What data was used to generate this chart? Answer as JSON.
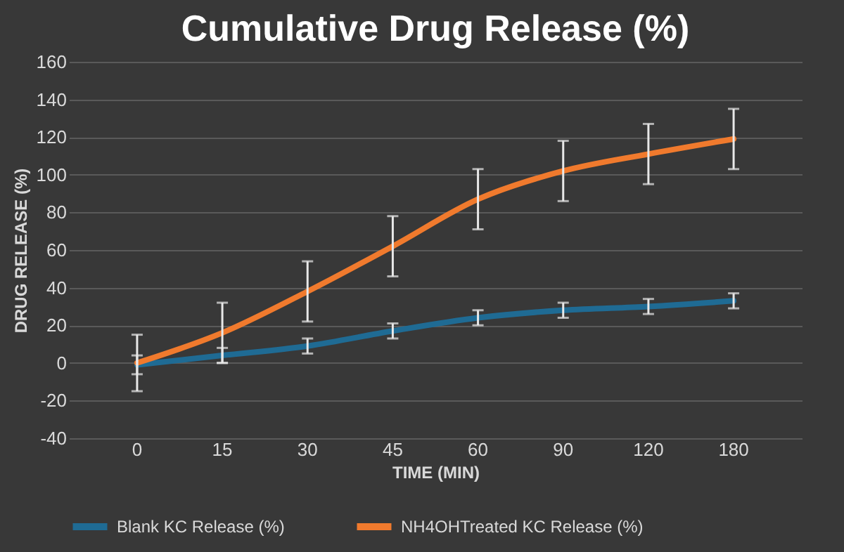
{
  "chart_data": {
    "type": "line",
    "title": "Cumulative Drug Release (%)",
    "xlabel": "TIME (MIN)",
    "ylabel": "DRUG RELEASE (%)",
    "categories": [
      "0",
      "15",
      "30",
      "45",
      "60",
      "90",
      "120",
      "180"
    ],
    "series": [
      {
        "name": "Blank KC Release (%)",
        "color": "#1f6b94",
        "values": [
          -1,
          4,
          9,
          17,
          24,
          28,
          30,
          33
        ],
        "errors": [
          5,
          4,
          4,
          4,
          4,
          4,
          4,
          4
        ]
      },
      {
        "name": "NH4OHTreated KC Release (%)",
        "color": "#f07a2d",
        "values": [
          0,
          16,
          38,
          62,
          87,
          102,
          111,
          119
        ],
        "errors": [
          15,
          16,
          16,
          16,
          16,
          16,
          16,
          16
        ]
      }
    ],
    "ylim": [
      -40,
      160
    ],
    "yticks": [
      -40,
      -20,
      0,
      20,
      40,
      60,
      80,
      100,
      120,
      140,
      160
    ],
    "grid": "y",
    "legend": "bottom",
    "marker": "none",
    "line_style": "solid"
  }
}
